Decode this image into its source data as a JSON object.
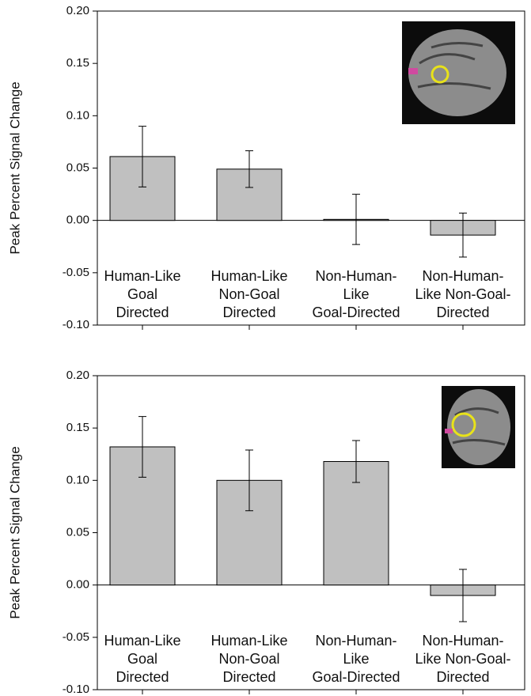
{
  "chart_data": [
    {
      "type": "bar",
      "ylabel": "Peak Percent Signal Change",
      "categories": [
        "Human-Like\nGoal\nDirected",
        "Human-Like\nNon-Goal\nDirected",
        "Non-Human-\nLike\nGoal-Directed",
        "Non-Human-\nLike Non-Goal-\nDirected"
      ],
      "values": [
        0.061,
        0.049,
        0.001,
        -0.014
      ],
      "errors": [
        0.029,
        0.0175,
        0.024,
        0.021
      ],
      "color": "#c0c0c0",
      "ylim": [
        -0.1,
        0.2
      ],
      "yticks": [
        {
          "value": -0.1,
          "label": "-0.10"
        },
        -0.05,
        {
          "value": 0,
          "label": "0.00"
        },
        0.05,
        {
          "value": 0.1,
          "label": "0.10"
        },
        0.15,
        {
          "value": 0.2,
          "label": "0.20"
        }
      ]
    },
    {
      "type": "bar",
      "ylabel": "Peak Percent Signal Change",
      "categories": [
        "Human-Like\nGoal\nDirected",
        "Human-Like\nNon-Goal\nDirected",
        "Non-Human-\nLike\nGoal-Directed",
        "Non-Human-\nLike Non-Goal-\nDirected"
      ],
      "values": [
        0.132,
        0.1,
        0.118,
        -0.01
      ],
      "errors": [
        0.029,
        0.029,
        0.02,
        0.025
      ],
      "color": "#c0c0c0",
      "ylim": [
        -0.1,
        0.2
      ],
      "yticks": [
        {
          "value": -0.1,
          "label": "-0.10"
        },
        -0.05,
        {
          "value": 0,
          "label": "0.00"
        },
        0.05,
        {
          "value": 0.1,
          "label": "0.10"
        },
        0.15,
        {
          "value": 0.2,
          "label": "0.20"
        }
      ]
    }
  ]
}
